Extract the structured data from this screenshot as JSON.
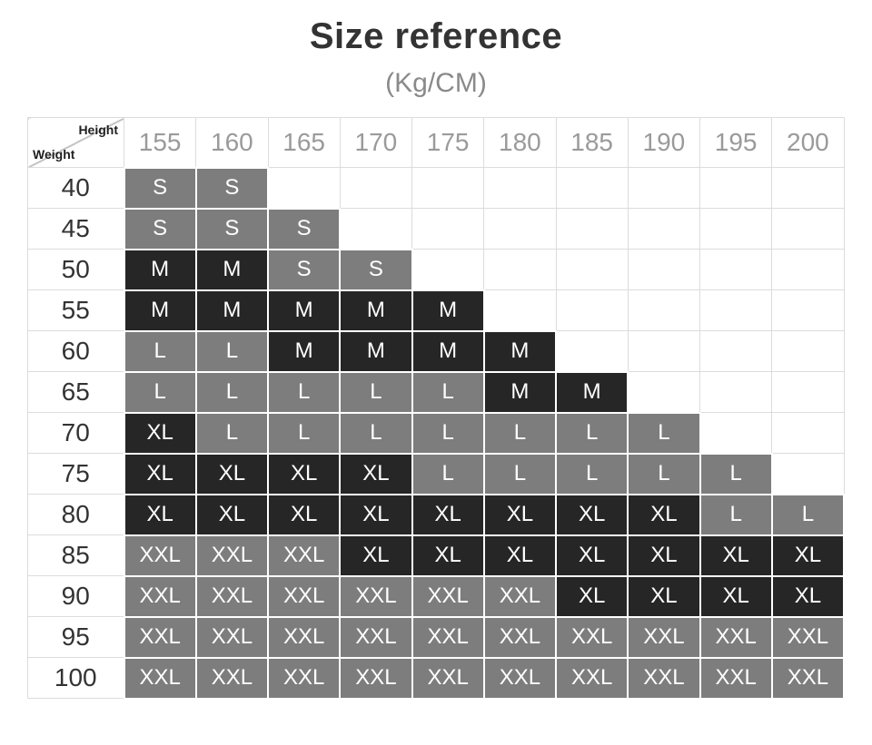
{
  "title": "Size reference",
  "subtitle": "(Kg/CM)",
  "corner_labels": {
    "top_right": "Height",
    "bottom_left": "Weight"
  },
  "colors": {
    "cell_gray": "#7d7d7d",
    "cell_dark": "#262626",
    "cell_text": "#ffffff",
    "grid_line": "#dcdcdc",
    "corner_line": "#c4c4c4",
    "header_text": "#9a9a9a",
    "weight_text": "#333333",
    "title_text": "#333333",
    "subtitle_text": "#8a8a8a"
  },
  "chart_data": {
    "type": "table",
    "title": "Size reference",
    "units": "(Kg/CM)",
    "x_axis_label": "Height",
    "y_axis_label": "Weight",
    "heights": [
      "155",
      "160",
      "165",
      "170",
      "175",
      "180",
      "185",
      "190",
      "195",
      "200"
    ],
    "weights": [
      "40",
      "45",
      "50",
      "55",
      "60",
      "65",
      "70",
      "75",
      "80",
      "85",
      "90",
      "95",
      "100"
    ],
    "rows": [
      {
        "weight": "40",
        "cells": [
          {
            "label": "S",
            "tone": "gray"
          },
          {
            "label": "S",
            "tone": "gray"
          },
          null,
          null,
          null,
          null,
          null,
          null,
          null,
          null
        ]
      },
      {
        "weight": "45",
        "cells": [
          {
            "label": "S",
            "tone": "gray"
          },
          {
            "label": "S",
            "tone": "gray"
          },
          {
            "label": "S",
            "tone": "gray"
          },
          null,
          null,
          null,
          null,
          null,
          null,
          null
        ]
      },
      {
        "weight": "50",
        "cells": [
          {
            "label": "M",
            "tone": "dark"
          },
          {
            "label": "M",
            "tone": "dark"
          },
          {
            "label": "S",
            "tone": "gray"
          },
          {
            "label": "S",
            "tone": "gray"
          },
          null,
          null,
          null,
          null,
          null,
          null
        ]
      },
      {
        "weight": "55",
        "cells": [
          {
            "label": "M",
            "tone": "dark"
          },
          {
            "label": "M",
            "tone": "dark"
          },
          {
            "label": "M",
            "tone": "dark"
          },
          {
            "label": "M",
            "tone": "dark"
          },
          {
            "label": "M",
            "tone": "dark"
          },
          null,
          null,
          null,
          null,
          null
        ]
      },
      {
        "weight": "60",
        "cells": [
          {
            "label": "L",
            "tone": "gray"
          },
          {
            "label": "L",
            "tone": "gray"
          },
          {
            "label": "M",
            "tone": "dark"
          },
          {
            "label": "M",
            "tone": "dark"
          },
          {
            "label": "M",
            "tone": "dark"
          },
          {
            "label": "M",
            "tone": "dark"
          },
          null,
          null,
          null,
          null
        ]
      },
      {
        "weight": "65",
        "cells": [
          {
            "label": "L",
            "tone": "gray"
          },
          {
            "label": "L",
            "tone": "gray"
          },
          {
            "label": "L",
            "tone": "gray"
          },
          {
            "label": "L",
            "tone": "gray"
          },
          {
            "label": "L",
            "tone": "gray"
          },
          {
            "label": "M",
            "tone": "dark"
          },
          {
            "label": "M",
            "tone": "dark"
          },
          null,
          null,
          null
        ]
      },
      {
        "weight": "70",
        "cells": [
          {
            "label": "XL",
            "tone": "dark"
          },
          {
            "label": "L",
            "tone": "gray"
          },
          {
            "label": "L",
            "tone": "gray"
          },
          {
            "label": "L",
            "tone": "gray"
          },
          {
            "label": "L",
            "tone": "gray"
          },
          {
            "label": "L",
            "tone": "gray"
          },
          {
            "label": "L",
            "tone": "gray"
          },
          {
            "label": "L",
            "tone": "gray"
          },
          null,
          null
        ]
      },
      {
        "weight": "75",
        "cells": [
          {
            "label": "XL",
            "tone": "dark"
          },
          {
            "label": "XL",
            "tone": "dark"
          },
          {
            "label": "XL",
            "tone": "dark"
          },
          {
            "label": "XL",
            "tone": "dark"
          },
          {
            "label": "L",
            "tone": "gray"
          },
          {
            "label": "L",
            "tone": "gray"
          },
          {
            "label": "L",
            "tone": "gray"
          },
          {
            "label": "L",
            "tone": "gray"
          },
          {
            "label": "L",
            "tone": "gray"
          },
          null
        ]
      },
      {
        "weight": "80",
        "cells": [
          {
            "label": "XL",
            "tone": "dark"
          },
          {
            "label": "XL",
            "tone": "dark"
          },
          {
            "label": "XL",
            "tone": "dark"
          },
          {
            "label": "XL",
            "tone": "dark"
          },
          {
            "label": "XL",
            "tone": "dark"
          },
          {
            "label": "XL",
            "tone": "dark"
          },
          {
            "label": "XL",
            "tone": "dark"
          },
          {
            "label": "XL",
            "tone": "dark"
          },
          {
            "label": "L",
            "tone": "gray"
          },
          {
            "label": "L",
            "tone": "gray"
          }
        ]
      },
      {
        "weight": "85",
        "cells": [
          {
            "label": "XXL",
            "tone": "gray"
          },
          {
            "label": "XXL",
            "tone": "gray"
          },
          {
            "label": "XXL",
            "tone": "gray"
          },
          {
            "label": "XL",
            "tone": "dark"
          },
          {
            "label": "XL",
            "tone": "dark"
          },
          {
            "label": "XL",
            "tone": "dark"
          },
          {
            "label": "XL",
            "tone": "dark"
          },
          {
            "label": "XL",
            "tone": "dark"
          },
          {
            "label": "XL",
            "tone": "dark"
          },
          {
            "label": "XL",
            "tone": "dark"
          }
        ]
      },
      {
        "weight": "90",
        "cells": [
          {
            "label": "XXL",
            "tone": "gray"
          },
          {
            "label": "XXL",
            "tone": "gray"
          },
          {
            "label": "XXL",
            "tone": "gray"
          },
          {
            "label": "XXL",
            "tone": "gray"
          },
          {
            "label": "XXL",
            "tone": "gray"
          },
          {
            "label": "XXL",
            "tone": "gray"
          },
          {
            "label": "XL",
            "tone": "dark"
          },
          {
            "label": "XL",
            "tone": "dark"
          },
          {
            "label": "XL",
            "tone": "dark"
          },
          {
            "label": "XL",
            "tone": "dark"
          }
        ]
      },
      {
        "weight": "95",
        "cells": [
          {
            "label": "XXL",
            "tone": "gray"
          },
          {
            "label": "XXL",
            "tone": "gray"
          },
          {
            "label": "XXL",
            "tone": "gray"
          },
          {
            "label": "XXL",
            "tone": "gray"
          },
          {
            "label": "XXL",
            "tone": "gray"
          },
          {
            "label": "XXL",
            "tone": "gray"
          },
          {
            "label": "XXL",
            "tone": "gray"
          },
          {
            "label": "XXL",
            "tone": "gray"
          },
          {
            "label": "XXL",
            "tone": "gray"
          },
          {
            "label": "XXL",
            "tone": "gray"
          }
        ]
      },
      {
        "weight": "100",
        "cells": [
          {
            "label": "XXL",
            "tone": "gray"
          },
          {
            "label": "XXL",
            "tone": "gray"
          },
          {
            "label": "XXL",
            "tone": "gray"
          },
          {
            "label": "XXL",
            "tone": "gray"
          },
          {
            "label": "XXL",
            "tone": "gray"
          },
          {
            "label": "XXL",
            "tone": "gray"
          },
          {
            "label": "XXL",
            "tone": "gray"
          },
          {
            "label": "XXL",
            "tone": "gray"
          },
          {
            "label": "XXL",
            "tone": "gray"
          },
          {
            "label": "XXL",
            "tone": "gray"
          }
        ]
      }
    ]
  }
}
